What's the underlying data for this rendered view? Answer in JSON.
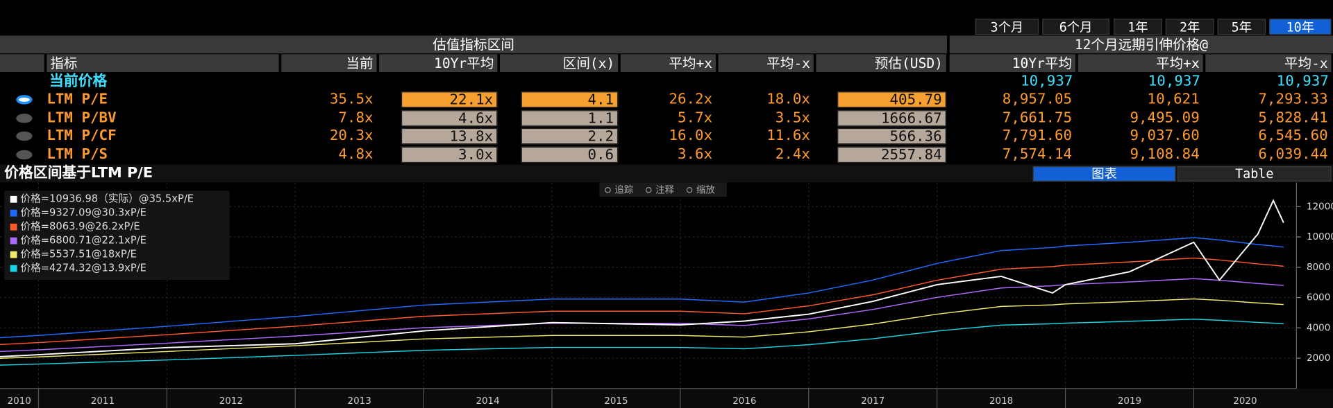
{
  "period_tabs": [
    {
      "label": "3个月",
      "active": false
    },
    {
      "label": "6个月",
      "active": false
    },
    {
      "label": "1年",
      "active": false
    },
    {
      "label": "2年",
      "active": false
    },
    {
      "label": "5年",
      "active": false
    },
    {
      "label": "10年",
      "active": true
    }
  ],
  "table": {
    "group_headers": [
      "估值指标区间",
      "12个月远期引伸价格@"
    ],
    "columns": [
      "指标",
      "当前",
      "10Yr平均",
      "区间(x)",
      "平均+x",
      "平均-x",
      "预估(USD)",
      "10Yr平均",
      "平均+x",
      "平均-x"
    ],
    "current_price": {
      "label": "当前价格",
      "values": [
        "10,937",
        "10,937",
        "10,937"
      ]
    },
    "rows": [
      {
        "label": "LTM P/E",
        "selected": true,
        "cells": [
          "35.5x",
          "22.1x",
          "4.1",
          "26.2x",
          "18.0x",
          "405.79",
          "8,957.05",
          "10,621",
          "7,293.33"
        ]
      },
      {
        "label": "LTM P/BV",
        "selected": false,
        "cells": [
          "7.8x",
          "4.6x",
          "1.1",
          "5.7x",
          "3.5x",
          "1666.67",
          "7,661.75",
          "9,495.09",
          "5,828.41"
        ]
      },
      {
        "label": "LTM P/CF",
        "selected": false,
        "cells": [
          "20.3x",
          "13.8x",
          "2.2",
          "16.0x",
          "11.6x",
          "566.36",
          "7,791.60",
          "9,037.60",
          "6,545.60"
        ]
      },
      {
        "label": "LTM P/S",
        "selected": false,
        "cells": [
          "4.8x",
          "3.0x",
          "0.6",
          "3.6x",
          "2.4x",
          "2557.84",
          "7,574.14",
          "9,108.84",
          "6,039.44"
        ]
      }
    ]
  },
  "chart_panel": {
    "title": "价格区间基于LTM P/E",
    "tabs": [
      {
        "label": "图表",
        "active": true
      },
      {
        "label": "Table",
        "active": false
      }
    ],
    "tools": [
      "追踪",
      "注释",
      "缩放"
    ],
    "chart_data": {
      "type": "line",
      "x": [
        2010.7,
        2011,
        2012,
        2013,
        2014,
        2015,
        2016,
        2016.5,
        2017,
        2017.5,
        2018,
        2018.5,
        2018.9,
        2019,
        2019.5,
        2020,
        2020.2,
        2020.5,
        2020.62,
        2020.7
      ],
      "xlim": [
        2010.7,
        2020.8
      ],
      "xticks": [
        2010,
        2011,
        2012,
        2013,
        2014,
        2015,
        2016,
        2017,
        2018,
        2019,
        2020
      ],
      "ylim": [
        0,
        13600
      ],
      "yticks": [
        2000,
        4000,
        6000,
        8000,
        10000,
        12000
      ],
      "grid": true,
      "series": [
        {
          "name": "价格=10936.98（实际）@35.5xP/E",
          "color": "#ffffff",
          "values": [
            2100,
            2230,
            2700,
            2950,
            3800,
            4350,
            4200,
            4450,
            4900,
            5750,
            6850,
            7400,
            6300,
            6850,
            7700,
            9650,
            7150,
            10200,
            12400,
            10937
          ]
        },
        {
          "name": "价格=9327.09@30.3xP/E",
          "color": "#1f6bff",
          "values": [
            3350,
            3500,
            4100,
            4750,
            5500,
            5900,
            5900,
            5700,
            6300,
            7150,
            8250,
            9100,
            9300,
            9400,
            9650,
            9950,
            9800,
            9500,
            9400,
            9327
          ]
        },
        {
          "name": "价格=8063.9@26.2xP/E",
          "color": "#ff5a2a",
          "values": [
            2900,
            3030,
            3550,
            4110,
            4760,
            5100,
            5100,
            4930,
            5450,
            6180,
            7140,
            7870,
            8040,
            8130,
            8350,
            8610,
            8480,
            8220,
            8130,
            8064
          ]
        },
        {
          "name": "价格=6800.71@22.1xP/E",
          "color": "#b069ff",
          "values": [
            2440,
            2550,
            2990,
            3460,
            4010,
            4300,
            4300,
            4160,
            4590,
            5210,
            6010,
            6630,
            6780,
            6850,
            7030,
            7250,
            7140,
            6930,
            6850,
            6801
          ]
        },
        {
          "name": "价格=5537.51@18xP/E",
          "color": "#f2e86a",
          "values": [
            1990,
            2080,
            2440,
            2820,
            3270,
            3500,
            3500,
            3390,
            3740,
            4250,
            4900,
            5410,
            5520,
            5580,
            5730,
            5910,
            5820,
            5640,
            5580,
            5538
          ]
        },
        {
          "name": "价格=4274.32@13.9xP/E",
          "color": "#19d3e6",
          "values": [
            1540,
            1610,
            1880,
            2180,
            2520,
            2710,
            2710,
            2620,
            2890,
            3280,
            3790,
            4180,
            4270,
            4310,
            4430,
            4570,
            4500,
            4360,
            4310,
            4274
          ]
        }
      ]
    }
  }
}
